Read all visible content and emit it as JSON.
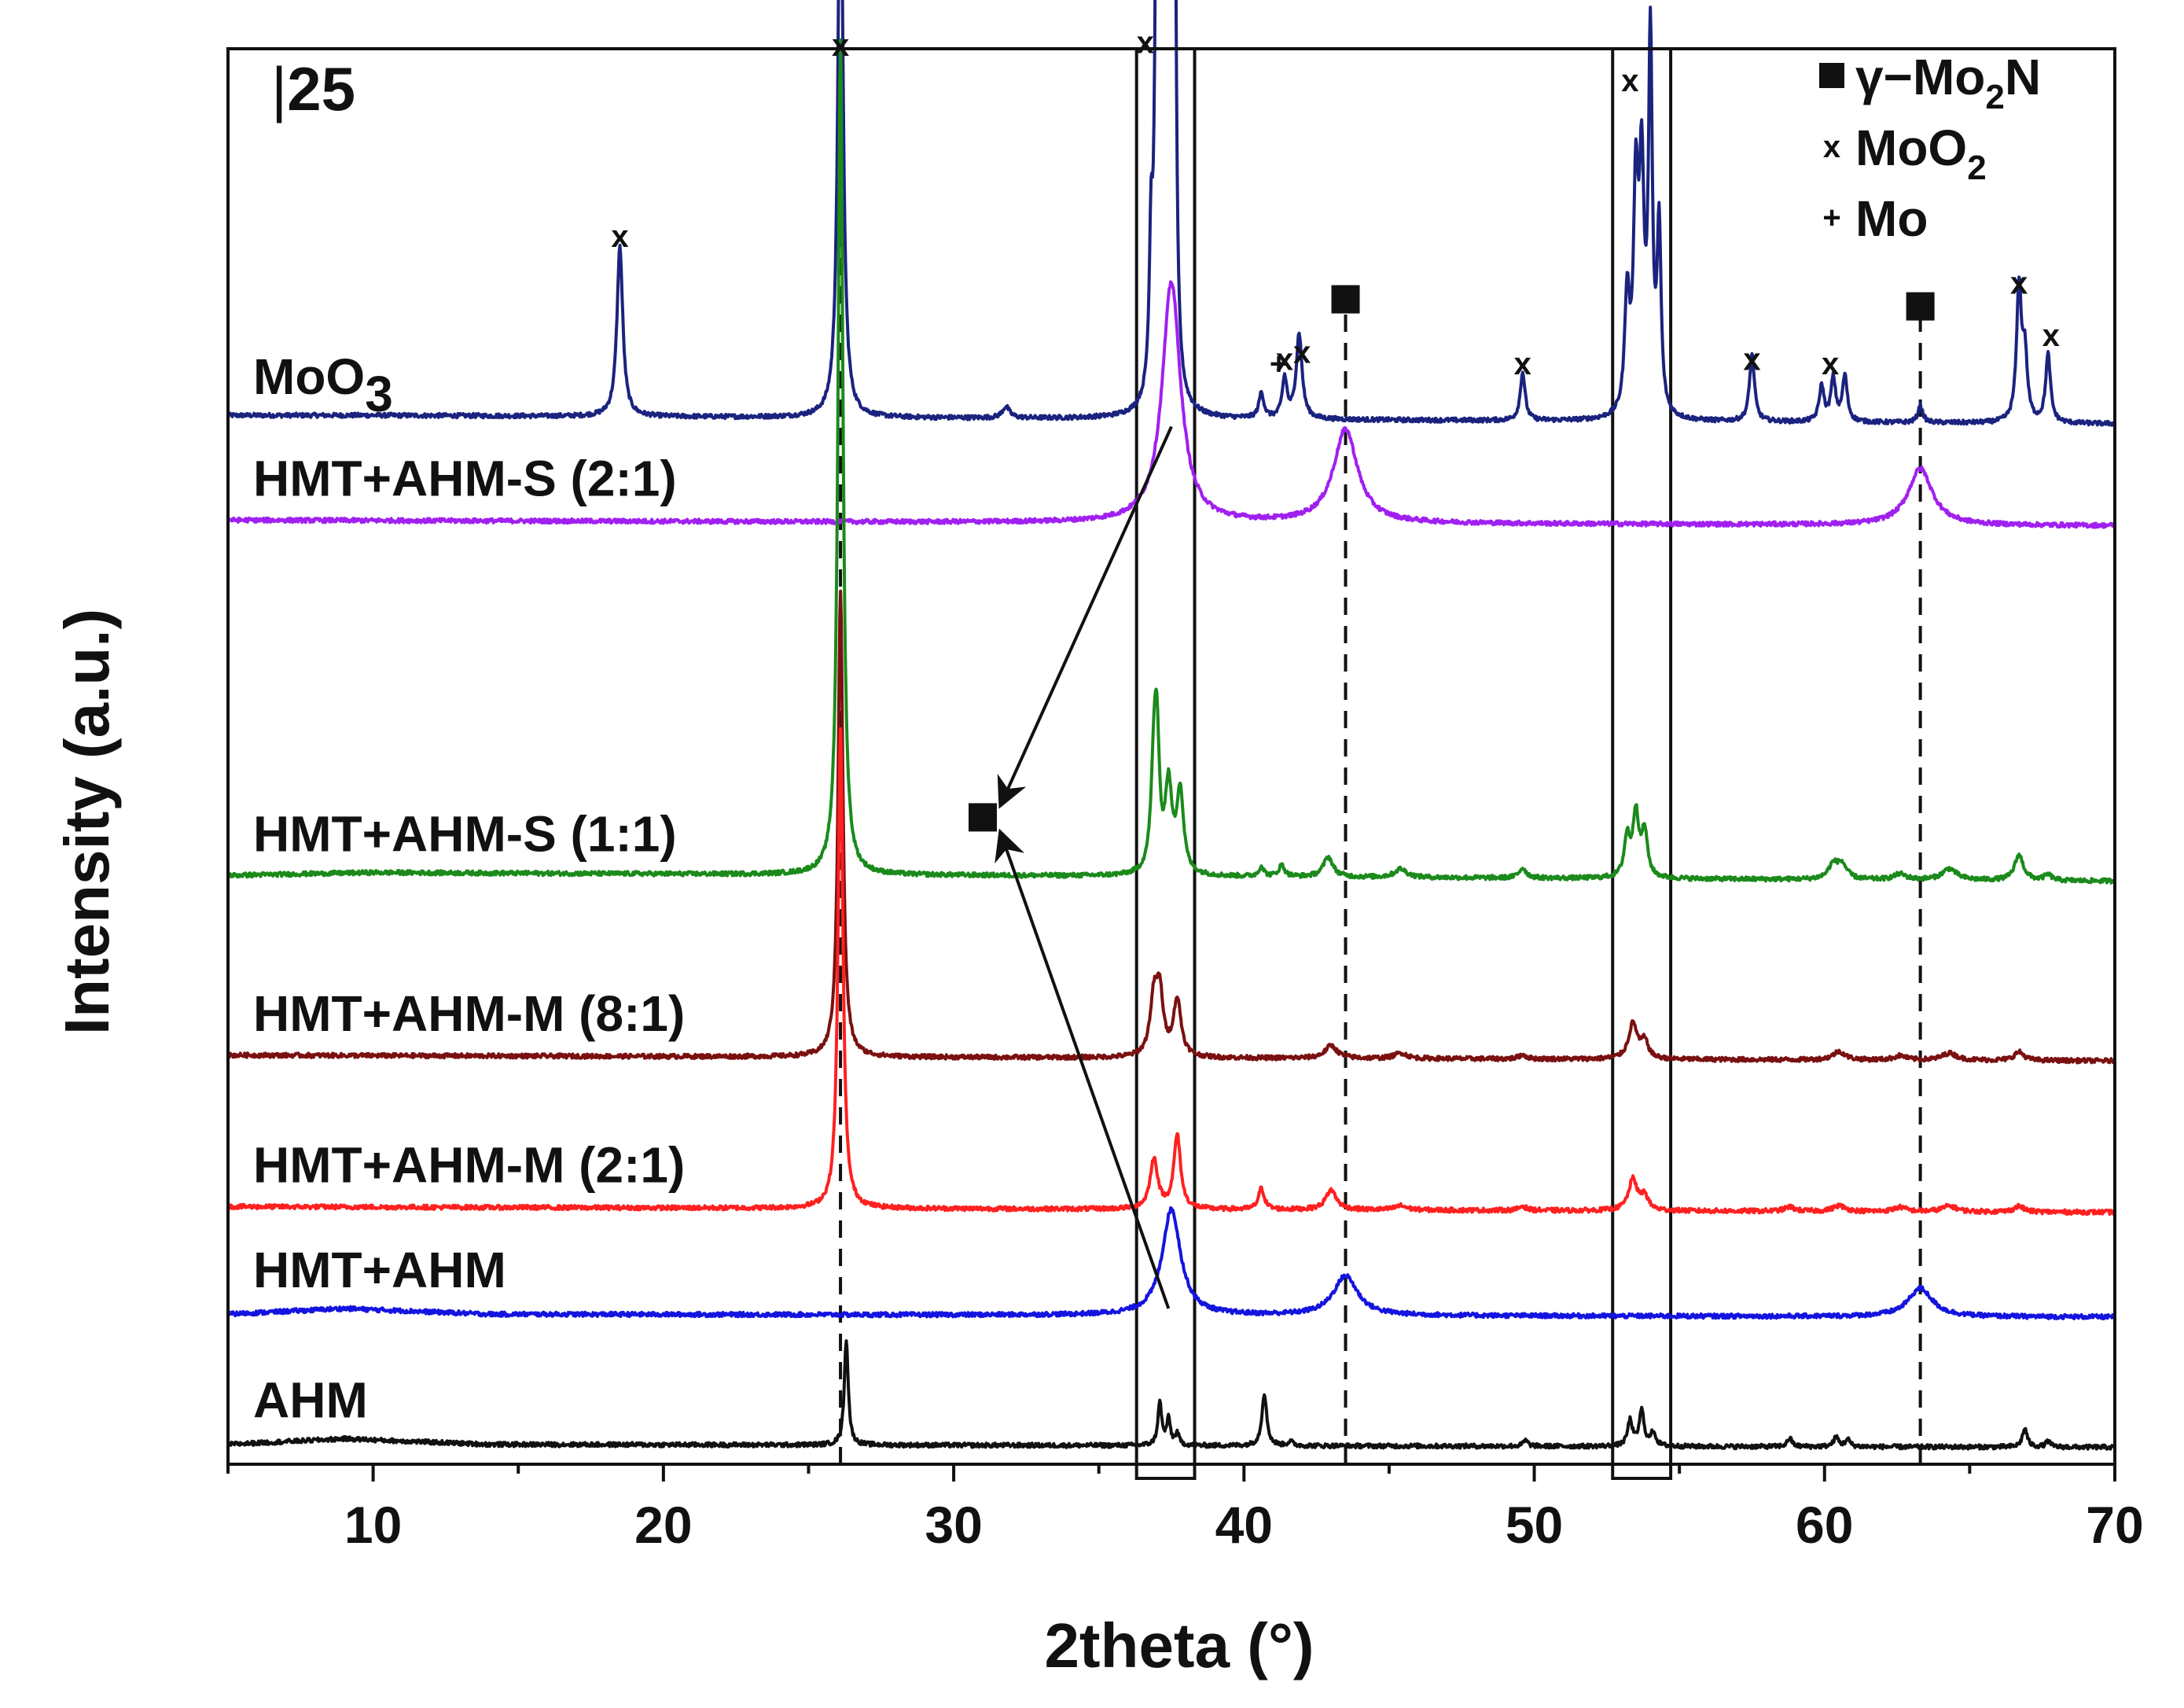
{
  "chart_data": {
    "type": "line",
    "title": "",
    "panel_label": "25",
    "xlabel": "2theta (°)",
    "ylabel": "Intensity (a.u.)",
    "xlim": [
      5,
      70
    ],
    "x_ticks": [
      10,
      20,
      30,
      40,
      50,
      60,
      70
    ],
    "grid": false,
    "legend": {
      "position": "top-right",
      "entries": [
        {
          "symbol": "square",
          "label": "γ−Mo",
          "sub": "2",
          "tail": "N"
        },
        {
          "symbol": "x",
          "label": "MoO",
          "sub": "2",
          "tail": ""
        },
        {
          "symbol": "+",
          "label": "Mo",
          "sub": "",
          "tail": ""
        }
      ]
    },
    "series": [
      {
        "name": "MoO3",
        "label_main": "MoO",
        "label_sub": "3",
        "color": "#1a237e",
        "baseline": 0.735,
        "background": [
          [
            5,
            0.006
          ],
          [
            10,
            0.006
          ],
          [
            70,
            0
          ]
        ],
        "peaks": [
          {
            "x": 18.5,
            "h": 0.12,
            "w": 0.12
          },
          {
            "x": 26.1,
            "h": 0.44,
            "w": 0.1
          },
          {
            "x": 31.8,
            "h": 0.008,
            "w": 0.15
          },
          {
            "x": 36.8,
            "h": 0.1,
            "w": 0.07
          },
          {
            "x": 37.0,
            "h": 0.42,
            "w": 0.07
          },
          {
            "x": 37.2,
            "h": 0.56,
            "w": 0.06
          },
          {
            "x": 37.4,
            "h": 0.74,
            "w": 0.07
          },
          {
            "x": 37.6,
            "h": 0.46,
            "w": 0.06
          },
          {
            "x": 40.6,
            "h": 0.018,
            "w": 0.1
          },
          {
            "x": 41.4,
            "h": 0.028,
            "w": 0.1
          },
          {
            "x": 41.9,
            "h": 0.06,
            "w": 0.12
          },
          {
            "x": 49.6,
            "h": 0.034,
            "w": 0.1
          },
          {
            "x": 53.2,
            "h": 0.082,
            "w": 0.1
          },
          {
            "x": 53.5,
            "h": 0.15,
            "w": 0.1
          },
          {
            "x": 53.7,
            "h": 0.16,
            "w": 0.1
          },
          {
            "x": 54.0,
            "h": 0.26,
            "w": 0.08
          },
          {
            "x": 54.3,
            "h": 0.13,
            "w": 0.08
          },
          {
            "x": 57.5,
            "h": 0.048,
            "w": 0.1
          },
          {
            "x": 59.9,
            "h": 0.025,
            "w": 0.1
          },
          {
            "x": 60.3,
            "h": 0.03,
            "w": 0.1
          },
          {
            "x": 60.7,
            "h": 0.032,
            "w": 0.1
          },
          {
            "x": 63.3,
            "h": 0.012,
            "w": 0.1
          },
          {
            "x": 66.7,
            "h": 0.095,
            "w": 0.1
          },
          {
            "x": 66.9,
            "h": 0.045,
            "w": 0.1
          },
          {
            "x": 67.7,
            "h": 0.048,
            "w": 0.1
          }
        ]
      },
      {
        "name": "HMT+AHM-S (2:1)",
        "label_main": "HMT+AHM-S (2:1)",
        "label_sub": "",
        "color": "#a020f0",
        "baseline": 0.663,
        "background": [
          [
            5,
            0.004
          ],
          [
            70,
            0
          ]
        ],
        "peaks": [
          {
            "x": 37.5,
            "h": 0.17,
            "w": 0.38
          },
          {
            "x": 43.5,
            "h": 0.066,
            "w": 0.5
          },
          {
            "x": 63.3,
            "h": 0.04,
            "w": 0.5
          }
        ]
      },
      {
        "name": "HMT+AHM-S (1:1)",
        "label_main": "HMT+AHM-S (1:1)",
        "label_sub": "",
        "color": "#1b8a1b",
        "baseline": 0.412,
        "background": [
          [
            5,
            0.004
          ],
          [
            10,
            0.006
          ],
          [
            70,
            0
          ]
        ],
        "peaks": [
          {
            "x": 26.1,
            "h": 0.59,
            "w": 0.1
          },
          {
            "x": 36.9,
            "h": 0.07,
            "w": 0.12
          },
          {
            "x": 37.0,
            "h": 0.08,
            "w": 0.1
          },
          {
            "x": 37.4,
            "h": 0.06,
            "w": 0.14
          },
          {
            "x": 37.8,
            "h": 0.058,
            "w": 0.14
          },
          {
            "x": 40.6,
            "h": 0.007,
            "w": 0.1
          },
          {
            "x": 41.3,
            "h": 0.008,
            "w": 0.12
          },
          {
            "x": 42.9,
            "h": 0.014,
            "w": 0.2
          },
          {
            "x": 45.4,
            "h": 0.006,
            "w": 0.25
          },
          {
            "x": 49.6,
            "h": 0.007,
            "w": 0.15
          },
          {
            "x": 53.2,
            "h": 0.028,
            "w": 0.12
          },
          {
            "x": 53.5,
            "h": 0.045,
            "w": 0.12
          },
          {
            "x": 53.8,
            "h": 0.032,
            "w": 0.12
          },
          {
            "x": 60.3,
            "h": 0.01,
            "w": 0.2
          },
          {
            "x": 60.6,
            "h": 0.01,
            "w": 0.2
          },
          {
            "x": 62.6,
            "h": 0.004,
            "w": 0.25
          },
          {
            "x": 64.3,
            "h": 0.008,
            "w": 0.3
          },
          {
            "x": 66.7,
            "h": 0.018,
            "w": 0.18
          },
          {
            "x": 67.7,
            "h": 0.004,
            "w": 0.15
          }
        ]
      },
      {
        "name": "HMT+AHM-M (8:1)",
        "label_main": "HMT+AHM-M (8:1)",
        "label_sub": "",
        "color": "#7a1010",
        "baseline": 0.285,
        "background": [
          [
            5,
            0.004
          ],
          [
            70,
            0
          ]
        ],
        "peaks": [
          {
            "x": 26.1,
            "h": 0.33,
            "w": 0.1
          },
          {
            "x": 36.9,
            "h": 0.04,
            "w": 0.16
          },
          {
            "x": 37.1,
            "h": 0.04,
            "w": 0.14
          },
          {
            "x": 37.7,
            "h": 0.04,
            "w": 0.16
          },
          {
            "x": 43.0,
            "h": 0.009,
            "w": 0.25
          },
          {
            "x": 45.4,
            "h": 0.004,
            "w": 0.25
          },
          {
            "x": 49.6,
            "h": 0.003,
            "w": 0.15
          },
          {
            "x": 53.4,
            "h": 0.025,
            "w": 0.18
          },
          {
            "x": 53.8,
            "h": 0.012,
            "w": 0.15
          },
          {
            "x": 60.5,
            "h": 0.006,
            "w": 0.25
          },
          {
            "x": 62.6,
            "h": 0.003,
            "w": 0.25
          },
          {
            "x": 64.3,
            "h": 0.005,
            "w": 0.3
          },
          {
            "x": 66.7,
            "h": 0.006,
            "w": 0.2
          }
        ]
      },
      {
        "name": "HMT+AHM-M (2:1)",
        "label_main": "HMT+AHM-M (2:1)",
        "label_sub": "",
        "color": "#ff2020",
        "baseline": 0.178,
        "background": [
          [
            5,
            0.004
          ],
          [
            70,
            0
          ]
        ],
        "peaks": [
          {
            "x": 26.1,
            "h": 0.34,
            "w": 0.1
          },
          {
            "x": 36.9,
            "h": 0.035,
            "w": 0.16
          },
          {
            "x": 37.7,
            "h": 0.052,
            "w": 0.14
          },
          {
            "x": 40.6,
            "h": 0.015,
            "w": 0.12
          },
          {
            "x": 43.0,
            "h": 0.014,
            "w": 0.22
          },
          {
            "x": 45.4,
            "h": 0.003,
            "w": 0.25
          },
          {
            "x": 49.6,
            "h": 0.003,
            "w": 0.15
          },
          {
            "x": 53.4,
            "h": 0.022,
            "w": 0.18
          },
          {
            "x": 53.8,
            "h": 0.01,
            "w": 0.15
          },
          {
            "x": 58.8,
            "h": 0.003,
            "w": 0.2
          },
          {
            "x": 60.5,
            "h": 0.004,
            "w": 0.25
          },
          {
            "x": 62.6,
            "h": 0.003,
            "w": 0.25
          },
          {
            "x": 64.3,
            "h": 0.004,
            "w": 0.3
          },
          {
            "x": 66.7,
            "h": 0.004,
            "w": 0.2
          }
        ]
      },
      {
        "name": "HMT+AHM",
        "label_main": "HMT+AHM",
        "label_sub": "",
        "color": "#1414e0",
        "baseline": 0.104,
        "background": [
          [
            5,
            0.002
          ],
          [
            9,
            0.006
          ],
          [
            14,
            0.002
          ],
          [
            70,
            0
          ]
        ],
        "peaks": [
          {
            "x": 37.5,
            "h": 0.075,
            "w": 0.38
          },
          {
            "x": 43.5,
            "h": 0.028,
            "w": 0.5
          },
          {
            "x": 63.3,
            "h": 0.02,
            "w": 0.5
          }
        ]
      },
      {
        "name": "AHM",
        "label_main": "AHM",
        "label_sub": "",
        "color": "#111111",
        "baseline": 0.012,
        "background": [
          [
            5,
            0.002
          ],
          [
            9,
            0.006
          ],
          [
            14,
            0.002
          ],
          [
            70,
            0
          ]
        ],
        "peaks": [
          {
            "x": 26.3,
            "h": 0.075,
            "w": 0.08
          },
          {
            "x": 37.1,
            "h": 0.03,
            "w": 0.08
          },
          {
            "x": 37.4,
            "h": 0.018,
            "w": 0.08
          },
          {
            "x": 37.7,
            "h": 0.008,
            "w": 0.08
          },
          {
            "x": 40.7,
            "h": 0.037,
            "w": 0.1
          },
          {
            "x": 41.6,
            "h": 0.003,
            "w": 0.1
          },
          {
            "x": 49.7,
            "h": 0.004,
            "w": 0.1
          },
          {
            "x": 53.3,
            "h": 0.018,
            "w": 0.1
          },
          {
            "x": 53.7,
            "h": 0.025,
            "w": 0.1
          },
          {
            "x": 54.1,
            "h": 0.01,
            "w": 0.1
          },
          {
            "x": 58.8,
            "h": 0.006,
            "w": 0.1
          },
          {
            "x": 60.4,
            "h": 0.007,
            "w": 0.1
          },
          {
            "x": 60.8,
            "h": 0.005,
            "w": 0.1
          },
          {
            "x": 66.9,
            "h": 0.013,
            "w": 0.1
          },
          {
            "x": 67.7,
            "h": 0.004,
            "w": 0.1
          }
        ]
      }
    ],
    "reference_lines": [
      {
        "x": 26.1,
        "y_from": 0.0,
        "y_to": 0.985,
        "style": "dashed"
      },
      {
        "x": 43.5,
        "y_from": 0.0,
        "y_to": 0.82,
        "style": "dashed"
      },
      {
        "x": 63.3,
        "y_from": 0.0,
        "y_to": 0.815,
        "style": "dashed"
      }
    ],
    "highlight_boxes": [
      {
        "x0": 36.3,
        "x1": 38.3,
        "y0": -0.01,
        "y1": 1.0
      },
      {
        "x0": 52.7,
        "x1": 54.7,
        "y0": -0.01,
        "y1": 1.0
      }
    ],
    "phase_markers": [
      {
        "x": 26.1,
        "y": 0.995,
        "symbol": "x"
      },
      {
        "x": 18.5,
        "y": 0.86,
        "symbol": "x"
      },
      {
        "x": 36.6,
        "y": 0.997,
        "symbol": "x"
      },
      {
        "x": 41.2,
        "y": 0.77,
        "symbol": "+"
      },
      {
        "x": 41.4,
        "y": 0.773,
        "symbol": "x"
      },
      {
        "x": 42.0,
        "y": 0.778,
        "symbol": "x"
      },
      {
        "x": 49.6,
        "y": 0.77,
        "symbol": "x"
      },
      {
        "x": 53.3,
        "y": 0.97,
        "symbol": "x"
      },
      {
        "x": 57.5,
        "y": 0.773,
        "symbol": "x"
      },
      {
        "x": 60.2,
        "y": 0.77,
        "symbol": "x"
      },
      {
        "x": 66.7,
        "y": 0.827,
        "symbol": "x"
      },
      {
        "x": 67.8,
        "y": 0.79,
        "symbol": "x"
      },
      {
        "x": 43.5,
        "y": 0.823,
        "symbol": "square"
      },
      {
        "x": 63.3,
        "y": 0.818,
        "symbol": "square"
      },
      {
        "x": 31.0,
        "y": 0.457,
        "symbol": "square"
      }
    ],
    "arrows": [
      {
        "from": [
          37.5,
          0.733
        ],
        "to": [
          31.6,
          0.465
        ]
      },
      {
        "from": [
          37.4,
          0.11
        ],
        "to": [
          31.6,
          0.447
        ]
      }
    ]
  }
}
